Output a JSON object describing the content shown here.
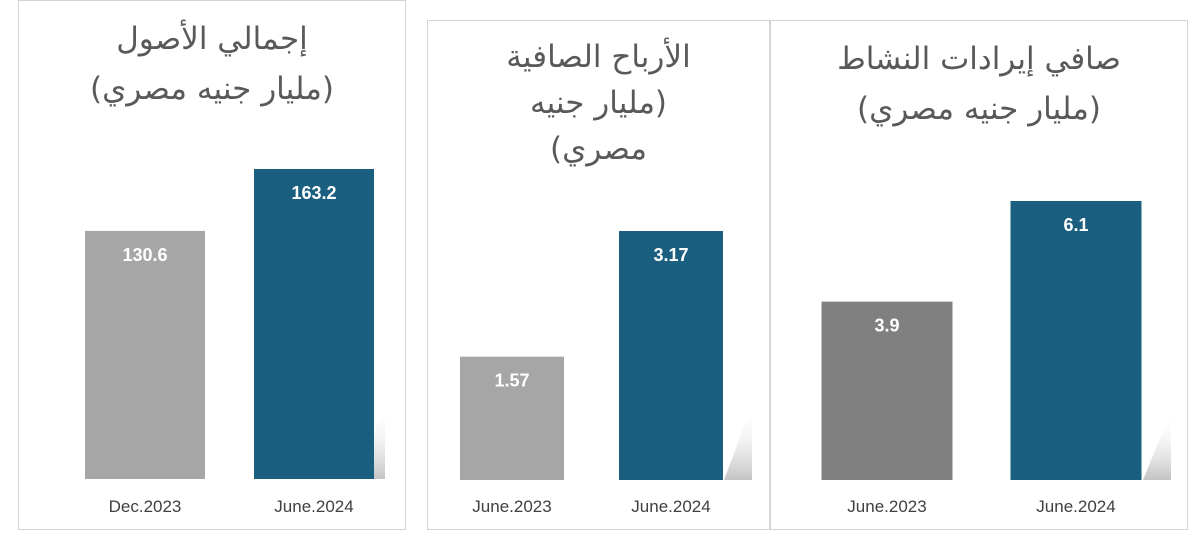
{
  "chart_data": [
    {
      "type": "bar",
      "title": "إجمالي الأصول",
      "subtitle": "(مليار جنيه مصري)",
      "categories": [
        "Dec.2023",
        "June.2024"
      ],
      "values": [
        130.6,
        163.2
      ],
      "value_labels": [
        "130.6",
        "163.2"
      ],
      "colors": [
        "#a6a6a6",
        "#1a5f80"
      ],
      "grid": false,
      "legend": "none"
    },
    {
      "type": "bar",
      "title": "الأرباح الصافية",
      "subtitle": "(مليار جنيه",
      "subtitle2": "مصري)",
      "categories": [
        "June.2023",
        "June.2024"
      ],
      "values": [
        1.57,
        3.17
      ],
      "value_labels": [
        "1.57",
        "3.17"
      ],
      "colors": [
        "#a6a6a6",
        "#1a5f80"
      ],
      "grid": false,
      "legend": "none"
    },
    {
      "type": "bar",
      "title": "صافي إيرادات النشاط",
      "subtitle": "(مليار جنيه مصري)",
      "categories": [
        "June.2023",
        "June.2024"
      ],
      "values": [
        3.9,
        6.1
      ],
      "value_labels": [
        "3.9",
        "6.1"
      ],
      "colors": [
        "#808080",
        "#1a5f80"
      ],
      "grid": false,
      "legend": "none"
    }
  ]
}
